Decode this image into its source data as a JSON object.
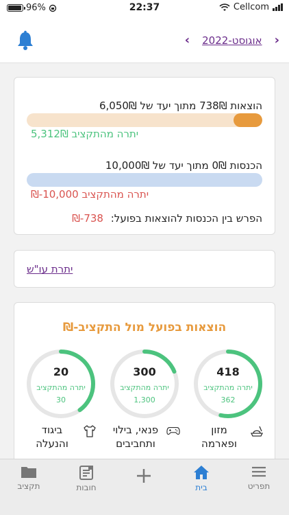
{
  "status_bar": {
    "battery": "96%",
    "time": "22:37",
    "carrier": "Cellcom"
  },
  "header": {
    "month": "אוגוסט-2022",
    "prev_icon": "chevron-left-icon",
    "next_icon": "chevron-right-icon",
    "bell_icon": "bell-icon"
  },
  "summary": {
    "expenses_line": "הוצאות 738₪ מתוך יעד של 6,050₪",
    "expenses_progress": 0.122,
    "expenses_remaining": "יתרה מהתקציב 5,312₪",
    "income_line": "הכנסות 0₪ מתוך יעד של 10,000₪",
    "income_progress": 0,
    "income_remaining": "יתרה מהתקציב 10,000-₪",
    "diff_label": "הפרש בין הכנסות להוצאות בפועל:",
    "diff_value": "738-₪"
  },
  "balance_link": "יתרת עו\"ש",
  "budget": {
    "title": "הוצאות בפועל מול התקציב-₪",
    "remaining_label": "יתרה מהתקציב",
    "categories": [
      {
        "name": "מזון ופארמה",
        "spent": "418",
        "remaining": "362",
        "progress": 0.536,
        "icon": "food-icon"
      },
      {
        "name": "פנאי, בילוי ותחביבים",
        "spent": "300",
        "remaining": "1,300",
        "progress": 0.1875,
        "icon": "gamepad-icon"
      },
      {
        "name": "ביגוד והנעלה",
        "spent": "20",
        "remaining": "30",
        "progress": 0.4,
        "icon": "shirt-icon"
      }
    ]
  },
  "tabs": [
    {
      "label": "תפריט",
      "icon": "menu-icon"
    },
    {
      "label": "בית",
      "icon": "home-icon",
      "active": true
    },
    {
      "label": "",
      "icon": "plus-icon"
    },
    {
      "label": "חובות",
      "icon": "debts-icon"
    },
    {
      "label": "תקציב",
      "icon": "folder-icon"
    }
  ],
  "colors": {
    "accent": "#6b2d8b",
    "orange": "#e79a3d",
    "green": "#4cc37e",
    "red": "#d9534f",
    "blue": "#2d7fd3"
  }
}
